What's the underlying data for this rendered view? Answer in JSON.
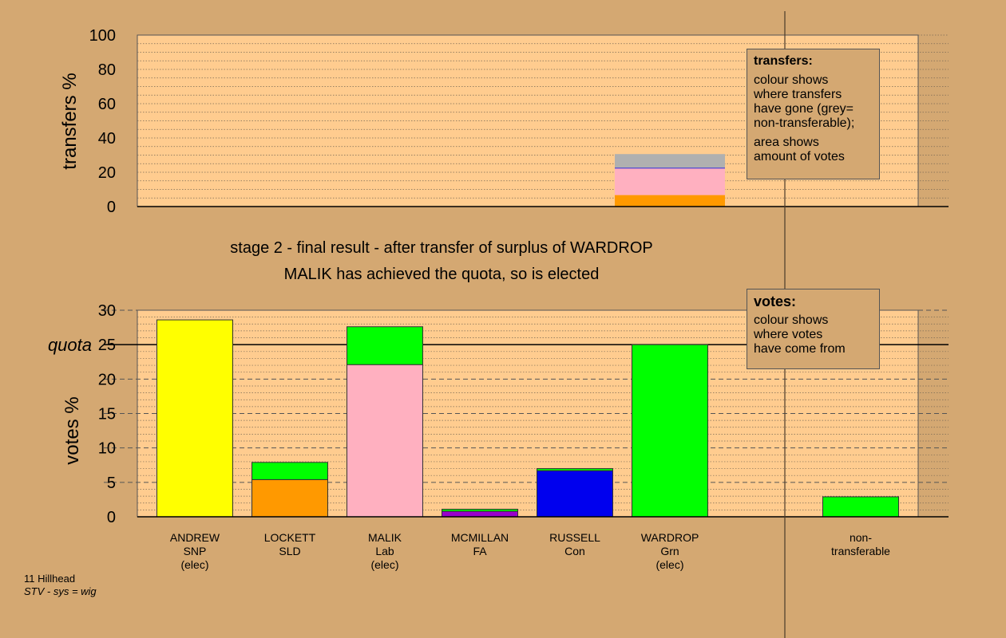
{
  "chart_data": [
    {
      "type": "bar",
      "stacked": true,
      "ylabel": "transfers %",
      "ylim": [
        0,
        100
      ],
      "yticks": [
        0,
        20,
        40,
        60,
        80,
        100
      ],
      "grid": "dotted",
      "legend_box": {
        "placement": "top-right",
        "title": "transfers:",
        "lines1": [
          "colour shows",
          "where transfers",
          "have gone (grey=",
          "non-transferable);"
        ],
        "lines2": [
          "area shows",
          "amount of votes"
        ]
      },
      "bars": [
        {
          "category": "WARDROP",
          "segments": [
            {
              "value": 6.7,
              "color": "#ff9900",
              "source": "LOCKETT"
            },
            {
              "value": 15.5,
              "color": "#ffb0c0",
              "source": "MALIK"
            },
            {
              "value": 0.4,
              "color": "#0000ee",
              "source": "RUSSELL"
            },
            {
              "value": 8.0,
              "color": "#b0b0b0",
              "source": "non-transferable"
            }
          ]
        }
      ]
    },
    {
      "type": "bar",
      "stacked": true,
      "ylabel": "votes %",
      "ylim": [
        0,
        30
      ],
      "yticks": [
        0,
        5,
        10,
        15,
        20,
        25,
        30
      ],
      "quota": {
        "value": 25,
        "label": "quota"
      },
      "grid": "dashed",
      "legend_box": {
        "placement": "top-right",
        "title": "votes:",
        "lines": [
          "colour shows",
          "where votes",
          "have come from"
        ]
      },
      "bars": [
        {
          "lines": [
            "ANDREW",
            "SNP",
            "(elec)"
          ],
          "segments": [
            {
              "value": 28.6,
              "color": "#ffff00"
            }
          ]
        },
        {
          "lines": [
            "LOCKETT",
            "SLD"
          ],
          "segments": [
            {
              "value": 5.4,
              "color": "#ff9900"
            },
            {
              "value": 2.5,
              "color": "#00ff00"
            }
          ]
        },
        {
          "lines": [
            "MALIK",
            "Lab",
            "(elec)"
          ],
          "segments": [
            {
              "value": 22.1,
              "color": "#ffb0c0"
            },
            {
              "value": 5.5,
              "color": "#00ff00"
            }
          ]
        },
        {
          "lines": [
            "MCMILLAN",
            "FA"
          ],
          "segments": [
            {
              "value": 0.8,
              "color": "#9900cc"
            },
            {
              "value": 0.3,
              "color": "#00ff00"
            }
          ]
        },
        {
          "lines": [
            "RUSSELL",
            "Con"
          ],
          "segments": [
            {
              "value": 6.7,
              "color": "#0000ee"
            },
            {
              "value": 0.3,
              "color": "#00ff00"
            }
          ]
        },
        {
          "lines": [
            "WARDROP",
            "Grn",
            "(elec)"
          ],
          "segments": [
            {
              "value": 25.0,
              "color": "#00ff00"
            }
          ]
        },
        {
          "lines": [
            "non-",
            "transferable"
          ],
          "segments": [
            {
              "value": 2.9,
              "color": "#00ff00"
            }
          ]
        }
      ]
    }
  ],
  "stage_text": {
    "line1": "stage 2 - final result - after transfer of surplus of WARDROP",
    "line2": "MALIK has achieved the quota, so is elected"
  },
  "footnote": {
    "line1": "11 Hillhead",
    "line2": "STV - sys = wig"
  },
  "colors": {
    "background": "#d4a872",
    "plot_background": "#ffcc8f",
    "axis": "#000000"
  }
}
